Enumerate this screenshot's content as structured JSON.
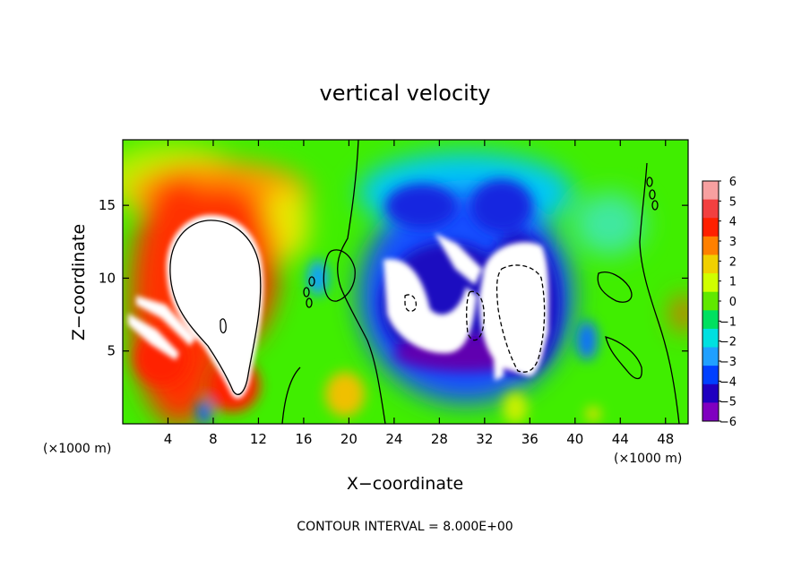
{
  "chart_data": {
    "type": "heatmap",
    "title": "vertical velocity",
    "xlabel": "X−coordinate",
    "ylabel": "Z−coordinate",
    "x_unit_left": "(×1000 m)",
    "x_unit_right": "(×1000 m)",
    "footer": "CONTOUR INTERVAL = 8.000E+00",
    "xlim": [
      0,
      50
    ],
    "ylim": [
      0,
      19.5
    ],
    "x_ticks": [
      4,
      8,
      12,
      16,
      20,
      24,
      28,
      32,
      36,
      40,
      44,
      48
    ],
    "x_tick_labels": [
      "4",
      "8",
      "12",
      "16",
      "20",
      "24",
      "28",
      "32",
      "36",
      "40",
      "44",
      "48"
    ],
    "y_ticks": [
      5,
      10,
      15
    ],
    "y_tick_labels": [
      "5",
      "10",
      "15"
    ],
    "colorbar": {
      "min": -6,
      "max": 6,
      "tick_labels": [
        "6",
        "5",
        "4",
        "3",
        "2",
        "1",
        "0",
        "−1",
        "−2",
        "−3",
        "−4",
        "−5",
        "−6"
      ],
      "colors": [
        "#f7a0a0",
        "#f24040",
        "#ff2000",
        "#ff8000",
        "#f0d000",
        "#d0ff00",
        "#60e800",
        "#00e060",
        "#00e0e0",
        "#20a0ff",
        "#0040ff",
        "#2000c0",
        "#8000c0"
      ]
    },
    "saturated_color_positive": "#ffffff",
    "saturated_color_negative": "#ffffff",
    "features": [
      {
        "name": "updraft",
        "x_center": 9,
        "z_center": 10,
        "sign": "positive"
      },
      {
        "name": "downdraft",
        "x_center": 32,
        "z_center": 9,
        "sign": "negative"
      }
    ]
  }
}
